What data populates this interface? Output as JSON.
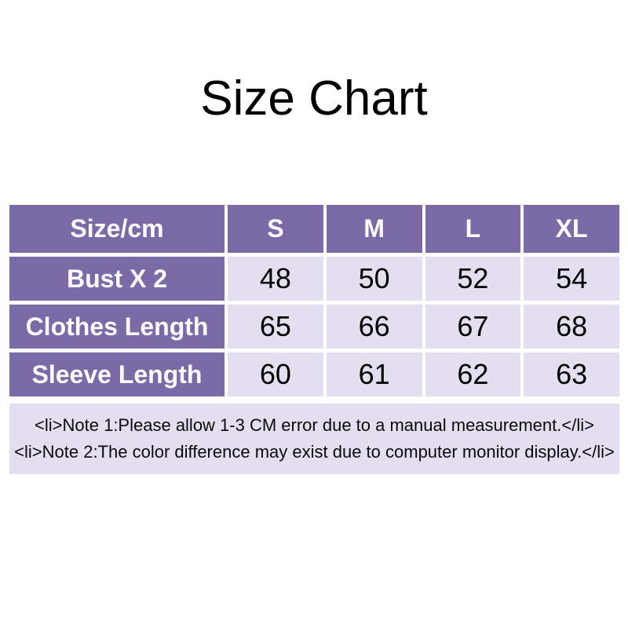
{
  "title": "Size Chart",
  "table": {
    "header": [
      "Size/cm",
      "S",
      "M",
      "L",
      "XL"
    ],
    "rows": [
      {
        "label": "Bust X 2",
        "values": [
          "48",
          "50",
          "52",
          "54"
        ]
      },
      {
        "label": "Clothes Length",
        "values": [
          "65",
          "66",
          "67",
          "68"
        ]
      },
      {
        "label": "Sleeve Length",
        "values": [
          "60",
          "61",
          "62",
          "63"
        ]
      }
    ]
  },
  "notes": [
    "<li>Note 1:Please allow 1-3 CM error due to a manual measurement.</li>",
    "<li>Note 2:The color difference may exist due to computer monitor display.</li>"
  ],
  "colors": {
    "header_purple": "#7b6aa5",
    "cell_lavender": "#e4dff0",
    "header_text": "#fdfcff",
    "value_text": "#000000",
    "page_background": "#ffffff"
  }
}
